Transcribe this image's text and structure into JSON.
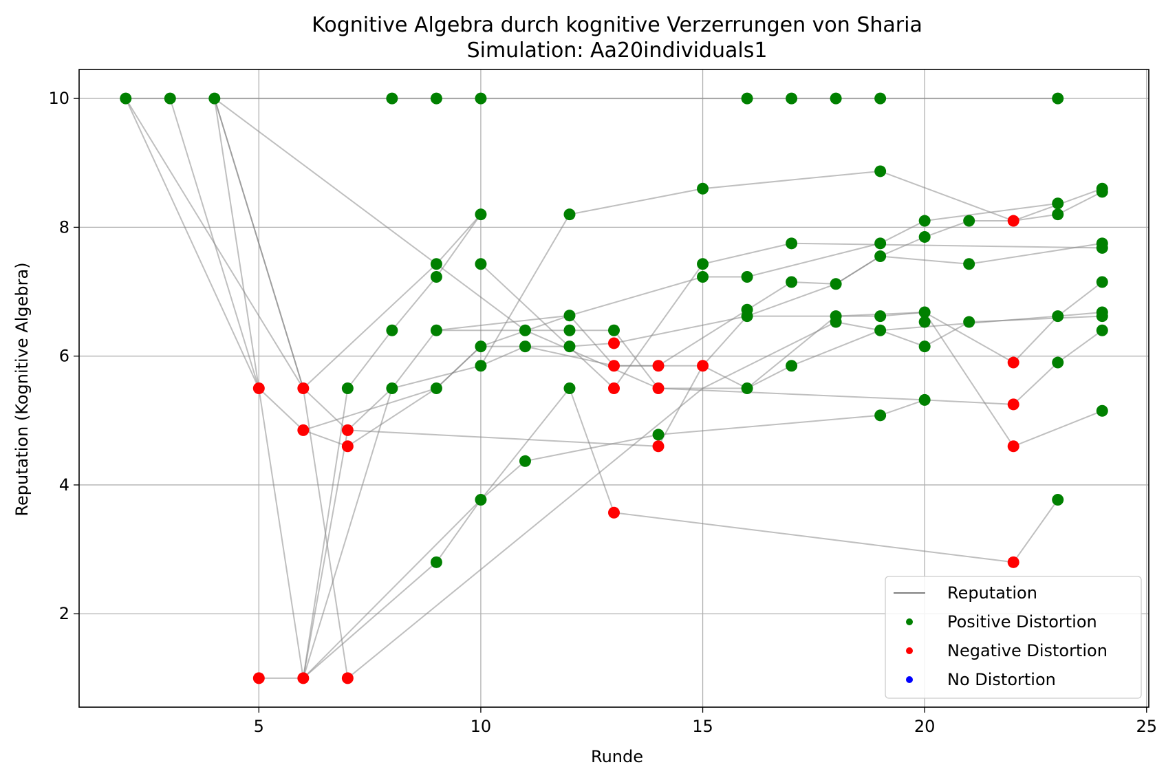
{
  "chart_data": {
    "type": "scatter",
    "title": "Kognitive Algebra durch kognitive Verzerrungen von Sharia",
    "subtitle": "Simulation: Aa20individuals1",
    "xlabel": "Runde",
    "ylabel": "Reputation (Kognitive Algebra)",
    "xlim": [
      0.95,
      25.05
    ],
    "ylim": [
      0.55,
      10.45
    ],
    "xticks": [
      5,
      10,
      15,
      20,
      25
    ],
    "yticks": [
      2,
      4,
      6,
      8,
      10
    ],
    "grid": true,
    "legend_position": "lower-right",
    "legend": [
      {
        "label": "Reputation",
        "kind": "line",
        "color": "#808080"
      },
      {
        "label": "Positive Distortion",
        "kind": "marker",
        "color": "#008000"
      },
      {
        "label": "Negative Distortion",
        "kind": "marker",
        "color": "#ff0000"
      },
      {
        "label": "No Distortion",
        "kind": "marker",
        "color": "#0000ff"
      }
    ],
    "colors": {
      "positive": "#008000",
      "negative": "#ff0000",
      "none": "#0000ff",
      "line": "#808080"
    },
    "trajectories": [
      {
        "points": [
          [
            2,
            10
          ],
          [
            8,
            10
          ],
          [
            9,
            10
          ],
          [
            10,
            10
          ],
          [
            16,
            10
          ],
          [
            17,
            10
          ],
          [
            18,
            10
          ],
          [
            19,
            10
          ],
          [
            23,
            10
          ]
        ]
      },
      {
        "points": [
          [
            2,
            10
          ],
          [
            5,
            5.5
          ],
          [
            6,
            4.85
          ],
          [
            7,
            4.6
          ],
          [
            9,
            5.5
          ],
          [
            10,
            6.15
          ],
          [
            12,
            6.15
          ],
          [
            13,
            6.2
          ],
          [
            16,
            6.62
          ],
          [
            19,
            6.62
          ],
          [
            20,
            6.68
          ],
          [
            22,
            5.9
          ],
          [
            23,
            6.62
          ],
          [
            24,
            6.68
          ]
        ]
      },
      {
        "points": [
          [
            2,
            10
          ],
          [
            6,
            5.5
          ],
          [
            9,
            7.43
          ],
          [
            10,
            8.2
          ]
        ]
      },
      {
        "points": [
          [
            3,
            10
          ],
          [
            5,
            5.5
          ]
        ]
      },
      {
        "points": [
          [
            4,
            10
          ],
          [
            5,
            5.5
          ],
          [
            6,
            1
          ],
          [
            8,
            5.5
          ],
          [
            9,
            6.4
          ],
          [
            13,
            6.4
          ],
          [
            14,
            5.5
          ],
          [
            20,
            5.32
          ],
          [
            22,
            5.25
          ],
          [
            23,
            5.9
          ],
          [
            24,
            6.4
          ]
        ]
      },
      {
        "points": [
          [
            4,
            10
          ],
          [
            6,
            5.5
          ],
          [
            7,
            4.85
          ],
          [
            8,
            5.5
          ],
          [
            10,
            5.85
          ],
          [
            11,
            6.15
          ],
          [
            13,
            5.85
          ],
          [
            14,
            5.85
          ],
          [
            15,
            5.85
          ],
          [
            16,
            6.62
          ],
          [
            18,
            7.12
          ],
          [
            19,
            7.55
          ],
          [
            20,
            7.85
          ],
          [
            21,
            8.1
          ],
          [
            22,
            8.1
          ],
          [
            24,
            8.6
          ]
        ]
      },
      {
        "points": [
          [
            4,
            10
          ],
          [
            6,
            5.5
          ],
          [
            7,
            1
          ]
        ]
      },
      {
        "points": [
          [
            4,
            10
          ],
          [
            9,
            7.43
          ],
          [
            11,
            6.4
          ],
          [
            14,
            5.5
          ],
          [
            16,
            5.5
          ],
          [
            18,
            6.62
          ],
          [
            20,
            6.68
          ],
          [
            22,
            4.6
          ],
          [
            24,
            5.15
          ]
        ]
      },
      {
        "points": [
          [
            5,
            1
          ],
          [
            6,
            1
          ],
          [
            7,
            5.5
          ],
          [
            8,
            6.4
          ],
          [
            9,
            7.23
          ],
          [
            10,
            8.2
          ]
        ]
      },
      {
        "points": [
          [
            6,
            1
          ],
          [
            7,
            4.85
          ],
          [
            14,
            4.6
          ],
          [
            15,
            5.85
          ],
          [
            16,
            5.5
          ],
          [
            17,
            5.85
          ],
          [
            19,
            6.4
          ],
          [
            20,
            6.15
          ],
          [
            21,
            6.53
          ],
          [
            24,
            6.62
          ]
        ]
      },
      {
        "points": [
          [
            6,
            1
          ],
          [
            9,
            2.8
          ],
          [
            10,
            3.77
          ],
          [
            11,
            4.37
          ],
          [
            14,
            4.78
          ],
          [
            19,
            5.08
          ],
          [
            20,
            5.32
          ]
        ]
      },
      {
        "points": [
          [
            6,
            1
          ],
          [
            10,
            3.77
          ],
          [
            12,
            5.5
          ],
          [
            13,
            3.57
          ],
          [
            22,
            2.8
          ],
          [
            23,
            3.77
          ]
        ]
      },
      {
        "points": [
          [
            6,
            4.85
          ],
          [
            9,
            5.5
          ],
          [
            10,
            6.15
          ],
          [
            12,
            6.63
          ],
          [
            15,
            7.23
          ],
          [
            16,
            7.23
          ],
          [
            19,
            7.75
          ],
          [
            20,
            8.1
          ],
          [
            23,
            8.37
          ]
        ]
      },
      {
        "points": [
          [
            7,
            1
          ],
          [
            15,
            5.5
          ],
          [
            18,
            6.53
          ],
          [
            19,
            6.4
          ],
          [
            23,
            6.62
          ],
          [
            24,
            7.15
          ]
        ]
      },
      {
        "points": [
          [
            9,
            6.4
          ],
          [
            12,
            6.63
          ],
          [
            13,
            5.85
          ],
          [
            14,
            5.85
          ],
          [
            17,
            7.15
          ],
          [
            18,
            7.12
          ],
          [
            19,
            7.55
          ],
          [
            21,
            7.43
          ],
          [
            24,
            7.75
          ]
        ]
      },
      {
        "points": [
          [
            10,
            7.43
          ],
          [
            13,
            5.5
          ],
          [
            15,
            7.43
          ],
          [
            17,
            7.75
          ],
          [
            24,
            7.68
          ]
        ]
      },
      {
        "points": [
          [
            10,
            5.85
          ],
          [
            12,
            8.2
          ],
          [
            15,
            8.6
          ],
          [
            19,
            8.87
          ],
          [
            22,
            8.1
          ],
          [
            23,
            8.2
          ],
          [
            24,
            8.55
          ]
        ]
      }
    ],
    "markers": [
      {
        "x": 2,
        "y": 10,
        "d": "positive"
      },
      {
        "x": 3,
        "y": 10,
        "d": "positive"
      },
      {
        "x": 4,
        "y": 10,
        "d": "positive"
      },
      {
        "x": 8,
        "y": 10,
        "d": "positive"
      },
      {
        "x": 9,
        "y": 10,
        "d": "positive"
      },
      {
        "x": 10,
        "y": 10,
        "d": "positive"
      },
      {
        "x": 16,
        "y": 10,
        "d": "positive"
      },
      {
        "x": 17,
        "y": 10,
        "d": "positive"
      },
      {
        "x": 18,
        "y": 10,
        "d": "positive"
      },
      {
        "x": 19,
        "y": 10,
        "d": "positive"
      },
      {
        "x": 23,
        "y": 10,
        "d": "positive"
      },
      {
        "x": 5,
        "y": 5.5,
        "d": "negative"
      },
      {
        "x": 6,
        "y": 5.5,
        "d": "negative"
      },
      {
        "x": 6,
        "y": 4.85,
        "d": "negative"
      },
      {
        "x": 7,
        "y": 4.85,
        "d": "negative"
      },
      {
        "x": 7,
        "y": 4.6,
        "d": "negative"
      },
      {
        "x": 5,
        "y": 1,
        "d": "negative"
      },
      {
        "x": 6,
        "y": 1,
        "d": "negative"
      },
      {
        "x": 7,
        "y": 1,
        "d": "negative"
      },
      {
        "x": 7,
        "y": 5.5,
        "d": "positive"
      },
      {
        "x": 8,
        "y": 5.5,
        "d": "positive"
      },
      {
        "x": 8,
        "y": 6.4,
        "d": "positive"
      },
      {
        "x": 9,
        "y": 7.43,
        "d": "positive"
      },
      {
        "x": 9,
        "y": 7.23,
        "d": "positive"
      },
      {
        "x": 9,
        "y": 6.4,
        "d": "positive"
      },
      {
        "x": 9,
        "y": 5.5,
        "d": "positive"
      },
      {
        "x": 9,
        "y": 2.8,
        "d": "positive"
      },
      {
        "x": 10,
        "y": 8.2,
        "d": "positive"
      },
      {
        "x": 10,
        "y": 7.43,
        "d": "positive"
      },
      {
        "x": 10,
        "y": 6.15,
        "d": "positive"
      },
      {
        "x": 10,
        "y": 5.85,
        "d": "positive"
      },
      {
        "x": 10,
        "y": 3.77,
        "d": "positive"
      },
      {
        "x": 11,
        "y": 6.4,
        "d": "positive"
      },
      {
        "x": 11,
        "y": 6.15,
        "d": "positive"
      },
      {
        "x": 11,
        "y": 4.37,
        "d": "positive"
      },
      {
        "x": 12,
        "y": 8.2,
        "d": "positive"
      },
      {
        "x": 12,
        "y": 6.63,
        "d": "positive"
      },
      {
        "x": 12,
        "y": 6.4,
        "d": "positive"
      },
      {
        "x": 12,
        "y": 6.15,
        "d": "positive"
      },
      {
        "x": 12,
        "y": 5.5,
        "d": "positive"
      },
      {
        "x": 13,
        "y": 6.4,
        "d": "positive"
      },
      {
        "x": 13,
        "y": 6.2,
        "d": "negative"
      },
      {
        "x": 13,
        "y": 5.85,
        "d": "negative"
      },
      {
        "x": 13,
        "y": 5.5,
        "d": "negative"
      },
      {
        "x": 13,
        "y": 3.57,
        "d": "negative"
      },
      {
        "x": 14,
        "y": 5.85,
        "d": "negative"
      },
      {
        "x": 14,
        "y": 5.5,
        "d": "negative"
      },
      {
        "x": 14,
        "y": 4.78,
        "d": "positive"
      },
      {
        "x": 14,
        "y": 4.6,
        "d": "negative"
      },
      {
        "x": 15,
        "y": 8.6,
        "d": "positive"
      },
      {
        "x": 15,
        "y": 7.43,
        "d": "positive"
      },
      {
        "x": 15,
        "y": 7.23,
        "d": "positive"
      },
      {
        "x": 15,
        "y": 5.85,
        "d": "negative"
      },
      {
        "x": 16,
        "y": 7.23,
        "d": "positive"
      },
      {
        "x": 16,
        "y": 6.72,
        "d": "positive"
      },
      {
        "x": 16,
        "y": 6.62,
        "d": "positive"
      },
      {
        "x": 16,
        "y": 5.5,
        "d": "positive"
      },
      {
        "x": 17,
        "y": 7.75,
        "d": "positive"
      },
      {
        "x": 17,
        "y": 7.15,
        "d": "positive"
      },
      {
        "x": 17,
        "y": 5.85,
        "d": "positive"
      },
      {
        "x": 18,
        "y": 7.12,
        "d": "positive"
      },
      {
        "x": 18,
        "y": 6.62,
        "d": "positive"
      },
      {
        "x": 18,
        "y": 6.53,
        "d": "positive"
      },
      {
        "x": 19,
        "y": 8.87,
        "d": "positive"
      },
      {
        "x": 19,
        "y": 7.75,
        "d": "positive"
      },
      {
        "x": 19,
        "y": 7.55,
        "d": "positive"
      },
      {
        "x": 19,
        "y": 6.62,
        "d": "positive"
      },
      {
        "x": 19,
        "y": 6.4,
        "d": "positive"
      },
      {
        "x": 19,
        "y": 5.08,
        "d": "positive"
      },
      {
        "x": 20,
        "y": 8.1,
        "d": "positive"
      },
      {
        "x": 20,
        "y": 7.85,
        "d": "positive"
      },
      {
        "x": 20,
        "y": 6.68,
        "d": "positive"
      },
      {
        "x": 20,
        "y": 6.53,
        "d": "positive"
      },
      {
        "x": 20,
        "y": 6.15,
        "d": "positive"
      },
      {
        "x": 20,
        "y": 5.32,
        "d": "positive"
      },
      {
        "x": 21,
        "y": 8.1,
        "d": "positive"
      },
      {
        "x": 21,
        "y": 7.43,
        "d": "positive"
      },
      {
        "x": 21,
        "y": 6.53,
        "d": "positive"
      },
      {
        "x": 22,
        "y": 8.1,
        "d": "negative"
      },
      {
        "x": 22,
        "y": 5.9,
        "d": "negative"
      },
      {
        "x": 22,
        "y": 5.25,
        "d": "negative"
      },
      {
        "x": 22,
        "y": 4.6,
        "d": "negative"
      },
      {
        "x": 22,
        "y": 2.8,
        "d": "negative"
      },
      {
        "x": 23,
        "y": 8.37,
        "d": "positive"
      },
      {
        "x": 23,
        "y": 8.2,
        "d": "positive"
      },
      {
        "x": 23,
        "y": 6.62,
        "d": "positive"
      },
      {
        "x": 23,
        "y": 5.9,
        "d": "positive"
      },
      {
        "x": 23,
        "y": 3.77,
        "d": "positive"
      },
      {
        "x": 24,
        "y": 8.6,
        "d": "positive"
      },
      {
        "x": 24,
        "y": 8.55,
        "d": "positive"
      },
      {
        "x": 24,
        "y": 7.75,
        "d": "positive"
      },
      {
        "x": 24,
        "y": 7.68,
        "d": "positive"
      },
      {
        "x": 24,
        "y": 7.15,
        "d": "positive"
      },
      {
        "x": 24,
        "y": 6.68,
        "d": "positive"
      },
      {
        "x": 24,
        "y": 6.62,
        "d": "positive"
      },
      {
        "x": 24,
        "y": 6.4,
        "d": "positive"
      },
      {
        "x": 24,
        "y": 5.15,
        "d": "positive"
      }
    ]
  }
}
